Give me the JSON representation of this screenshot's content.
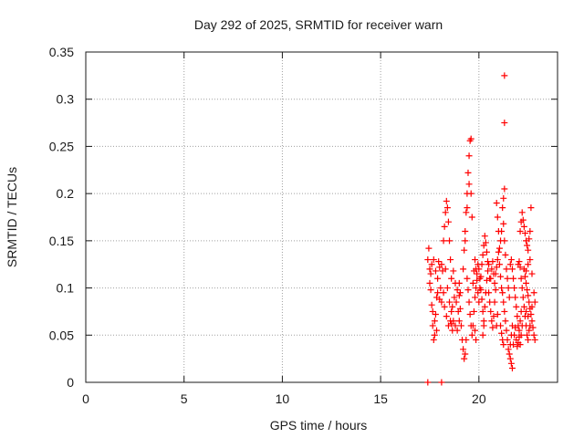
{
  "chart_data": {
    "type": "scatter",
    "title": "Day 292 of 2025, SRMTID for receiver warn",
    "xlabel": "GPS time / hours",
    "ylabel": "SRMTID / TECUs",
    "xlim": [
      0,
      24
    ],
    "ylim": [
      0,
      0.35
    ],
    "grid": true,
    "marker": "+",
    "color": "#ff0000",
    "x_ticks": [
      0,
      5,
      10,
      15,
      20
    ],
    "x_tick_labels": [
      "0",
      "5",
      "10",
      "15",
      "20"
    ],
    "y_ticks": [
      0,
      0.05,
      0.1,
      0.15,
      0.2,
      0.25,
      0.3,
      0.35
    ],
    "y_tick_labels": [
      "0",
      "0.05",
      "0.1",
      "0.15",
      "0.2",
      "0.25",
      "0.3",
      "0.35"
    ],
    "series": [
      {
        "name": "SRMTID",
        "points": [
          [
            17.4,
            0.13
          ],
          [
            17.45,
            0.142
          ],
          [
            17.5,
            0.12
          ],
          [
            17.55,
            0.098
          ],
          [
            17.6,
            0.082
          ],
          [
            17.65,
            0.06
          ],
          [
            17.7,
            0.045
          ],
          [
            17.75,
            0.05
          ],
          [
            17.8,
            0.072
          ],
          [
            17.85,
            0.09
          ],
          [
            17.9,
            0.11
          ],
          [
            17.95,
            0.128
          ],
          [
            18.0,
            0.122
          ],
          [
            18.05,
            0.1
          ],
          [
            18.1,
            0.085
          ],
          [
            17.5,
            0.105
          ],
          [
            17.55,
            0.115
          ],
          [
            17.6,
            0.125
          ],
          [
            17.7,
            0.13
          ],
          [
            17.8,
            0.118
          ],
          [
            17.9,
            0.095
          ],
          [
            18.0,
            0.088
          ],
          [
            17.65,
            0.075
          ],
          [
            17.75,
            0.065
          ],
          [
            17.85,
            0.055
          ],
          [
            18.2,
            0.15
          ],
          [
            18.25,
            0.165
          ],
          [
            18.3,
            0.18
          ],
          [
            18.35,
            0.192
          ],
          [
            18.4,
            0.185
          ],
          [
            18.45,
            0.17
          ],
          [
            18.5,
            0.15
          ],
          [
            18.55,
            0.13
          ],
          [
            18.3,
            0.12
          ],
          [
            18.4,
            0.1
          ],
          [
            18.5,
            0.085
          ],
          [
            18.6,
            0.075
          ],
          [
            18.7,
            0.065
          ],
          [
            18.8,
            0.06
          ],
          [
            18.9,
            0.055
          ],
          [
            18.2,
            0.095
          ],
          [
            18.25,
            0.08
          ],
          [
            18.35,
            0.07
          ],
          [
            18.45,
            0.06
          ],
          [
            18.55,
            0.065
          ],
          [
            18.65,
            0.08
          ],
          [
            18.75,
            0.09
          ],
          [
            18.85,
            0.085
          ],
          [
            18.95,
            0.075
          ],
          [
            19.0,
            0.065
          ],
          [
            18.6,
            0.11
          ],
          [
            18.7,
            0.118
          ],
          [
            18.8,
            0.105
          ],
          [
            18.9,
            0.098
          ],
          [
            19.0,
            0.092
          ],
          [
            19.05,
            0.078
          ],
          [
            19.1,
            0.06
          ],
          [
            19.15,
            0.045
          ],
          [
            19.2,
            0.035
          ],
          [
            19.25,
            0.025
          ],
          [
            19.3,
            0.03
          ],
          [
            19.35,
            0.045
          ],
          [
            19.2,
            0.12
          ],
          [
            19.25,
            0.14
          ],
          [
            19.3,
            0.16
          ],
          [
            19.35,
            0.18
          ],
          [
            19.4,
            0.2
          ],
          [
            19.45,
            0.222
          ],
          [
            19.5,
            0.24
          ],
          [
            19.55,
            0.256
          ],
          [
            19.6,
            0.258
          ],
          [
            19.5,
            0.21
          ],
          [
            19.4,
            0.185
          ],
          [
            19.3,
            0.15
          ],
          [
            19.6,
            0.2
          ],
          [
            19.65,
            0.175
          ],
          [
            19.4,
            0.11
          ],
          [
            19.45,
            0.098
          ],
          [
            19.5,
            0.085
          ],
          [
            19.55,
            0.072
          ],
          [
            19.6,
            0.06
          ],
          [
            19.65,
            0.05
          ],
          [
            19.7,
            0.06
          ],
          [
            19.75,
            0.075
          ],
          [
            19.8,
            0.09
          ],
          [
            19.85,
            0.1
          ],
          [
            19.9,
            0.115
          ],
          [
            19.95,
            0.125
          ],
          [
            19.7,
            0.105
          ],
          [
            19.75,
            0.118
          ],
          [
            19.8,
            0.13
          ],
          [
            19.85,
            0.12
          ],
          [
            19.9,
            0.108
          ],
          [
            19.95,
            0.095
          ],
          [
            20.0,
            0.085
          ],
          [
            20.05,
            0.1
          ],
          [
            20.1,
            0.112
          ],
          [
            20.15,
            0.125
          ],
          [
            20.2,
            0.135
          ],
          [
            20.25,
            0.145
          ],
          [
            20.0,
            0.12
          ],
          [
            20.05,
            0.11
          ],
          [
            20.1,
            0.098
          ],
          [
            20.15,
            0.088
          ],
          [
            20.2,
            0.075
          ],
          [
            20.25,
            0.065
          ],
          [
            20.3,
            0.08
          ],
          [
            20.35,
            0.095
          ],
          [
            20.4,
            0.108
          ],
          [
            20.45,
            0.118
          ],
          [
            20.5,
            0.125
          ],
          [
            20.55,
            0.11
          ],
          [
            20.3,
            0.155
          ],
          [
            20.35,
            0.148
          ],
          [
            20.4,
            0.138
          ],
          [
            20.45,
            0.128
          ],
          [
            20.5,
            0.095
          ],
          [
            20.55,
            0.085
          ],
          [
            20.6,
            0.075
          ],
          [
            20.65,
            0.065
          ],
          [
            20.7,
            0.058
          ],
          [
            20.75,
            0.07
          ],
          [
            20.8,
            0.085
          ],
          [
            20.85,
            0.098
          ],
          [
            20.6,
            0.11
          ],
          [
            20.65,
            0.12
          ],
          [
            20.7,
            0.128
          ],
          [
            20.75,
            0.115
          ],
          [
            20.8,
            0.105
          ],
          [
            20.85,
            0.115
          ],
          [
            20.9,
            0.122
          ],
          [
            20.95,
            0.13
          ],
          [
            21.0,
            0.138
          ],
          [
            21.05,
            0.142
          ],
          [
            21.1,
            0.15
          ],
          [
            21.15,
            0.16
          ],
          [
            20.9,
            0.19
          ],
          [
            20.95,
            0.175
          ],
          [
            21.0,
            0.16
          ],
          [
            21.05,
            0.125
          ],
          [
            21.1,
            0.112
          ],
          [
            21.15,
            0.1
          ],
          [
            21.2,
            0.095
          ],
          [
            21.25,
            0.085
          ],
          [
            21.3,
            0.075
          ],
          [
            21.35,
            0.065
          ],
          [
            21.4,
            0.055
          ],
          [
            21.45,
            0.045
          ],
          [
            21.2,
            0.185
          ],
          [
            21.25,
            0.195
          ],
          [
            21.3,
            0.205
          ],
          [
            21.25,
            0.168
          ],
          [
            21.3,
            0.15
          ],
          [
            21.35,
            0.135
          ],
          [
            21.4,
            0.12
          ],
          [
            21.45,
            0.11
          ],
          [
            21.5,
            0.1
          ],
          [
            21.55,
            0.09
          ],
          [
            21.3,
            0.325
          ],
          [
            21.3,
            0.275
          ],
          [
            21.1,
            0.06
          ],
          [
            21.15,
            0.052
          ],
          [
            21.2,
            0.045
          ],
          [
            21.25,
            0.04
          ],
          [
            21.5,
            0.035
          ],
          [
            21.55,
            0.03
          ],
          [
            21.6,
            0.025
          ],
          [
            21.65,
            0.02
          ],
          [
            21.7,
            0.015
          ],
          [
            21.6,
            0.04
          ],
          [
            21.65,
            0.05
          ],
          [
            21.7,
            0.06
          ],
          [
            21.6,
            0.125
          ],
          [
            21.65,
            0.13
          ],
          [
            21.7,
            0.12
          ],
          [
            21.75,
            0.11
          ],
          [
            21.8,
            0.1
          ],
          [
            21.85,
            0.09
          ],
          [
            21.9,
            0.08
          ],
          [
            21.95,
            0.07
          ],
          [
            22.0,
            0.06
          ],
          [
            22.05,
            0.055
          ],
          [
            22.1,
            0.065
          ],
          [
            22.15,
            0.075
          ],
          [
            21.75,
            0.04
          ],
          [
            21.8,
            0.05
          ],
          [
            21.85,
            0.058
          ],
          [
            21.9,
            0.045
          ],
          [
            21.95,
            0.038
          ],
          [
            22.0,
            0.042
          ],
          [
            22.05,
            0.048
          ],
          [
            22.1,
            0.04
          ],
          [
            22.15,
            0.05
          ],
          [
            22.2,
            0.06
          ],
          [
            22.0,
            0.125
          ],
          [
            22.05,
            0.128
          ],
          [
            22.1,
            0.122
          ],
          [
            22.15,
            0.11
          ],
          [
            22.2,
            0.1
          ],
          [
            22.25,
            0.09
          ],
          [
            22.3,
            0.08
          ],
          [
            22.35,
            0.07
          ],
          [
            22.4,
            0.06
          ],
          [
            22.45,
            0.05
          ],
          [
            22.5,
            0.045
          ],
          [
            22.55,
            0.055
          ],
          [
            22.1,
            0.16
          ],
          [
            22.15,
            0.17
          ],
          [
            22.2,
            0.18
          ],
          [
            22.25,
            0.172
          ],
          [
            22.3,
            0.165
          ],
          [
            22.35,
            0.158
          ],
          [
            22.4,
            0.15
          ],
          [
            22.45,
            0.145
          ],
          [
            22.5,
            0.14
          ],
          [
            22.55,
            0.152
          ],
          [
            22.6,
            0.16
          ],
          [
            22.65,
            0.185
          ],
          [
            22.3,
            0.12
          ],
          [
            22.35,
            0.112
          ],
          [
            22.4,
            0.105
          ],
          [
            22.45,
            0.098
          ],
          [
            22.5,
            0.092
          ],
          [
            22.55,
            0.085
          ],
          [
            22.6,
            0.078
          ],
          [
            22.65,
            0.072
          ],
          [
            22.7,
            0.065
          ],
          [
            22.75,
            0.058
          ],
          [
            22.8,
            0.05
          ],
          [
            22.85,
            0.045
          ],
          [
            22.4,
            0.118
          ],
          [
            22.5,
            0.125
          ],
          [
            22.6,
            0.13
          ],
          [
            22.7,
            0.115
          ],
          [
            22.8,
            0.095
          ],
          [
            22.85,
            0.085
          ],
          [
            22.7,
            0.08
          ],
          [
            22.6,
            0.06
          ],
          [
            22.5,
            0.07
          ],
          [
            22.4,
            0.075
          ],
          [
            18.1,
            0.125
          ],
          [
            18.15,
            0.118
          ],
          [
            18.6,
            0.062
          ],
          [
            18.65,
            0.055
          ],
          [
            19.0,
            0.105
          ],
          [
            19.05,
            0.095
          ],
          [
            19.8,
            0.055
          ],
          [
            19.85,
            0.045
          ],
          [
            20.2,
            0.05
          ],
          [
            20.25,
            0.06
          ],
          [
            20.9,
            0.06
          ],
          [
            20.95,
            0.072
          ],
          [
            17.4,
            0.0
          ],
          [
            18.1,
            0.0
          ]
        ]
      }
    ]
  }
}
